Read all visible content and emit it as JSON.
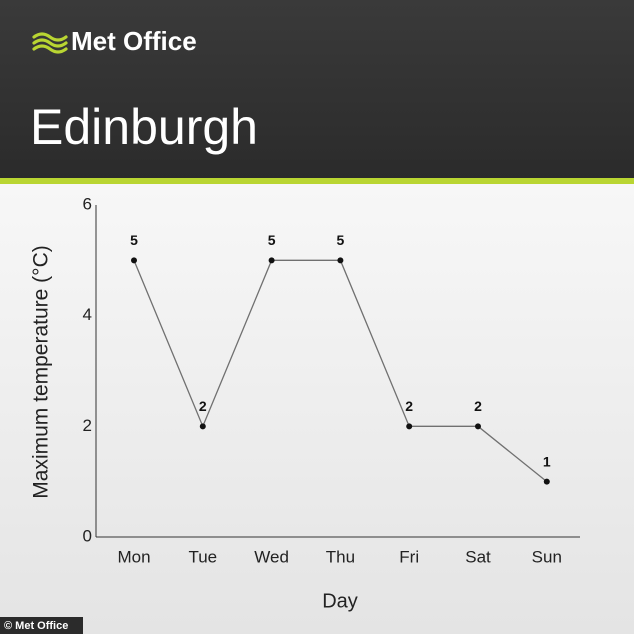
{
  "brand": "Met Office",
  "credit": "© Met Office",
  "chart_data": {
    "type": "line",
    "title": "Edinburgh",
    "xlabel": "Day",
    "ylabel": "Maximum temperature (°C)",
    "categories": [
      "Mon",
      "Tue",
      "Wed",
      "Thu",
      "Fri",
      "Sat",
      "Sun"
    ],
    "values": [
      5,
      2,
      5,
      5,
      2,
      2,
      1
    ],
    "color": "#707070",
    "ylim": [
      0,
      6
    ],
    "yticks": [
      0,
      2,
      4,
      6
    ],
    "grid": false
  }
}
